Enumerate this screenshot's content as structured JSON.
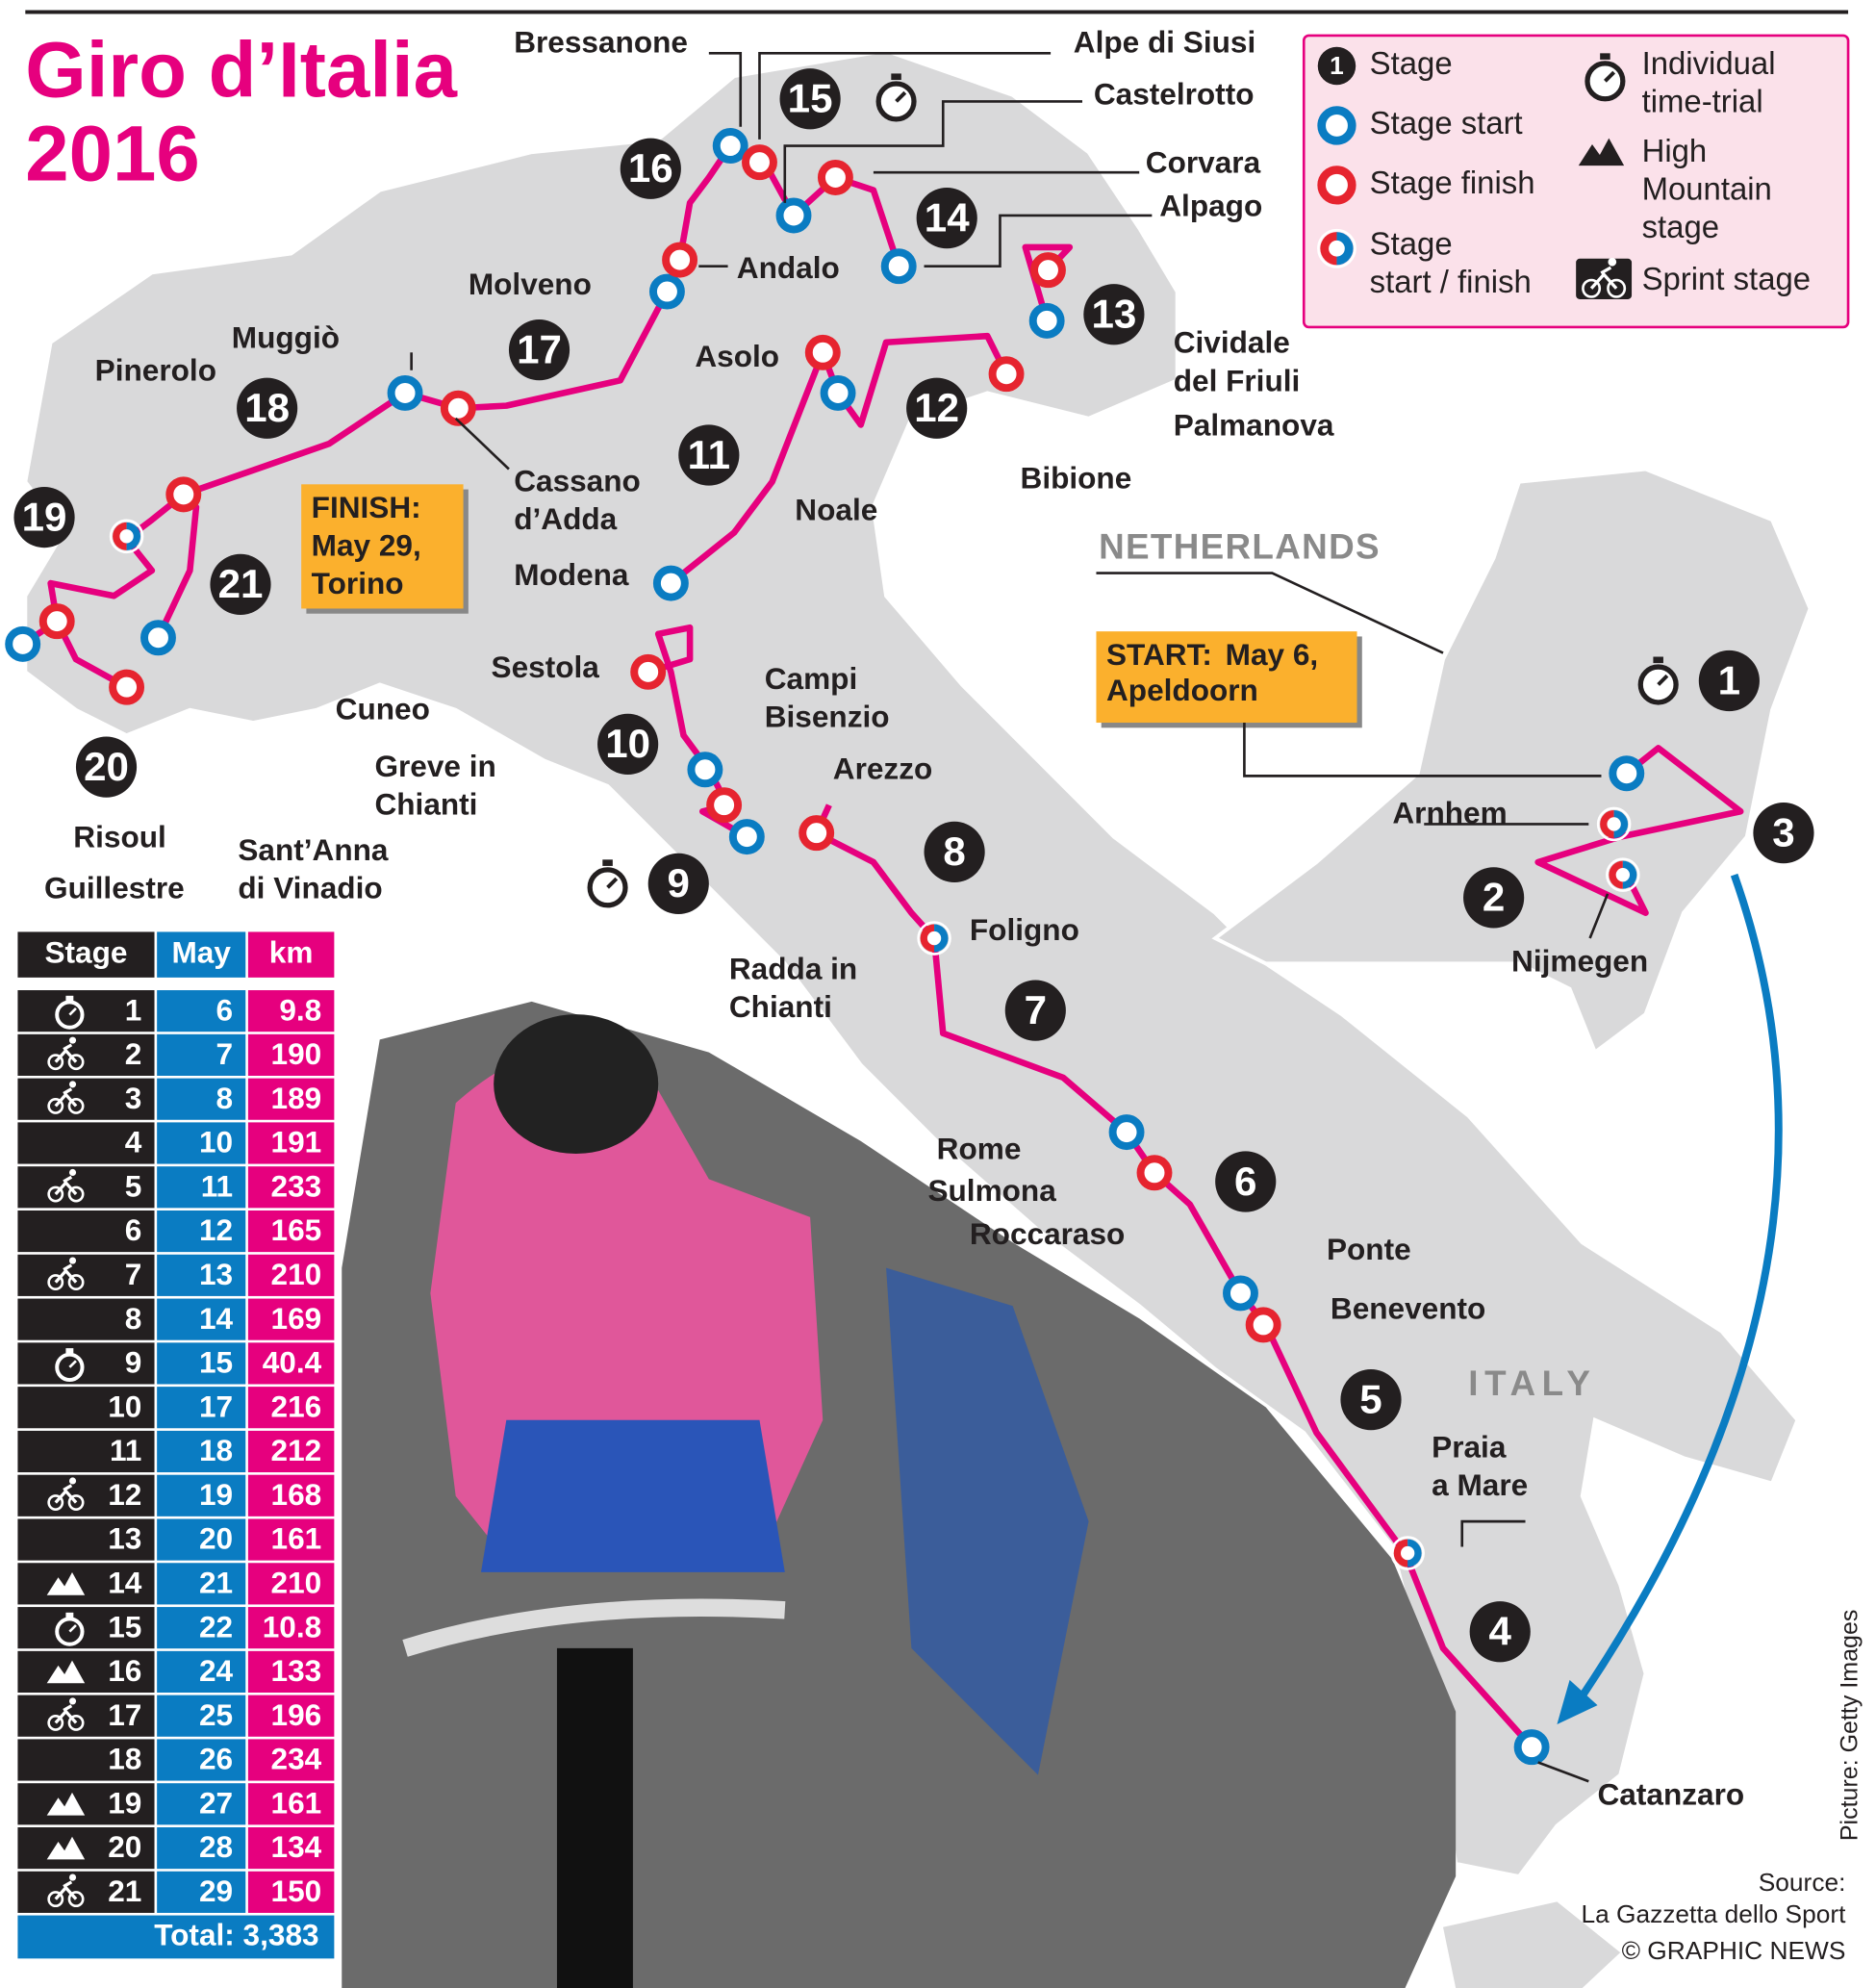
{
  "title": [
    "Giro d’Italia",
    "2016"
  ],
  "legend": [
    {
      "symbol": "1",
      "lines": [
        "Stage"
      ]
    },
    {
      "lines": [
        "Stage start"
      ]
    },
    {
      "lines": [
        "Stage finish"
      ]
    },
    {
      "lines": [
        "Stage",
        "start / finish"
      ]
    },
    {
      "lines": [
        "Individual",
        "time-trial"
      ]
    },
    {
      "lines": [
        "High",
        "Mountain",
        "stage"
      ]
    },
    {
      "lines": [
        "Sprint stage"
      ]
    }
  ],
  "countries": [
    "NETHERLANDS",
    "ITALY"
  ],
  "places": [
    [
      "Bressanone"
    ],
    [
      "Alpe di Siusi"
    ],
    [
      "Castelrotto"
    ],
    [
      "Corvara"
    ],
    [
      "Alpago"
    ],
    [
      "Andalo"
    ],
    [
      "Molveno"
    ],
    [
      "Muggiò"
    ],
    [
      "Pinerolo"
    ],
    [
      "Cassano",
      "d’Adda"
    ],
    [
      "Asolo"
    ],
    [
      "Cividale",
      "del Friuli"
    ],
    [
      "Palmanova"
    ],
    [
      "Bibione"
    ],
    [
      "Noale"
    ],
    [
      "Modena"
    ],
    [
      "Sestola"
    ],
    [
      "Campi",
      "Bisenzio"
    ],
    [
      "Cuneo"
    ],
    [
      "Greve in",
      "Chianti"
    ],
    [
      "Arezzo"
    ],
    [
      "Arnhem"
    ],
    [
      "Nijmegen"
    ],
    [
      "Risoul"
    ],
    [
      "Sant’Anna",
      "di Vinadio"
    ],
    [
      "Guillestre"
    ],
    [
      "Foligno"
    ],
    [
      "Radda in",
      "Chianti"
    ],
    [
      "Rome"
    ],
    [
      "Sulmona"
    ],
    [
      "Roccaraso"
    ],
    [
      "Ponte"
    ],
    [
      "Benevento"
    ],
    [
      "Praia",
      "a Mare"
    ],
    [
      "Catanzaro"
    ]
  ],
  "map_stages": [
    1,
    2,
    3,
    4,
    5,
    6,
    7,
    8,
    9,
    10,
    11,
    12,
    13,
    14,
    15,
    16,
    17,
    18,
    19,
    20,
    21
  ],
  "callouts": {
    "finish": {
      "head": "FINISH:",
      "lines": [
        "May 29,",
        "Torino"
      ]
    },
    "start": {
      "head": "START:",
      "lines": [
        "May 6,",
        "Apeldoorn"
      ]
    }
  },
  "table": {
    "header": [
      "Stage",
      "May",
      "km"
    ],
    "rows": [
      [
        1,
        6,
        9.8,
        "time-trial"
      ],
      [
        2,
        7,
        190,
        "sprint"
      ],
      [
        3,
        8,
        189,
        "sprint"
      ],
      [
        4,
        10,
        191,
        "none"
      ],
      [
        5,
        11,
        233,
        "sprint"
      ],
      [
        6,
        12,
        165,
        "none"
      ],
      [
        7,
        13,
        210,
        "sprint"
      ],
      [
        8,
        14,
        169,
        "none"
      ],
      [
        9,
        15,
        40.4,
        "time-trial"
      ],
      [
        10,
        17,
        216,
        "none"
      ],
      [
        11,
        18,
        212,
        "none"
      ],
      [
        12,
        19,
        168,
        "sprint"
      ],
      [
        13,
        20,
        161,
        "none"
      ],
      [
        14,
        21,
        210,
        "mountain"
      ],
      [
        15,
        22,
        10.8,
        "time-trial"
      ],
      [
        16,
        24,
        133,
        "mountain"
      ],
      [
        17,
        25,
        196,
        "sprint"
      ],
      [
        18,
        26,
        234,
        "none"
      ],
      [
        19,
        27,
        161,
        "mountain"
      ],
      [
        20,
        28,
        134,
        "mountain"
      ],
      [
        21,
        29,
        150,
        "sprint"
      ]
    ],
    "total": "Total: 3,383"
  },
  "credits": {
    "picture": "Picture: Getty Images",
    "source": [
      "Source:",
      "La Gazzetta dello Sport"
    ],
    "copyright": "© GRAPHIC NEWS"
  }
}
